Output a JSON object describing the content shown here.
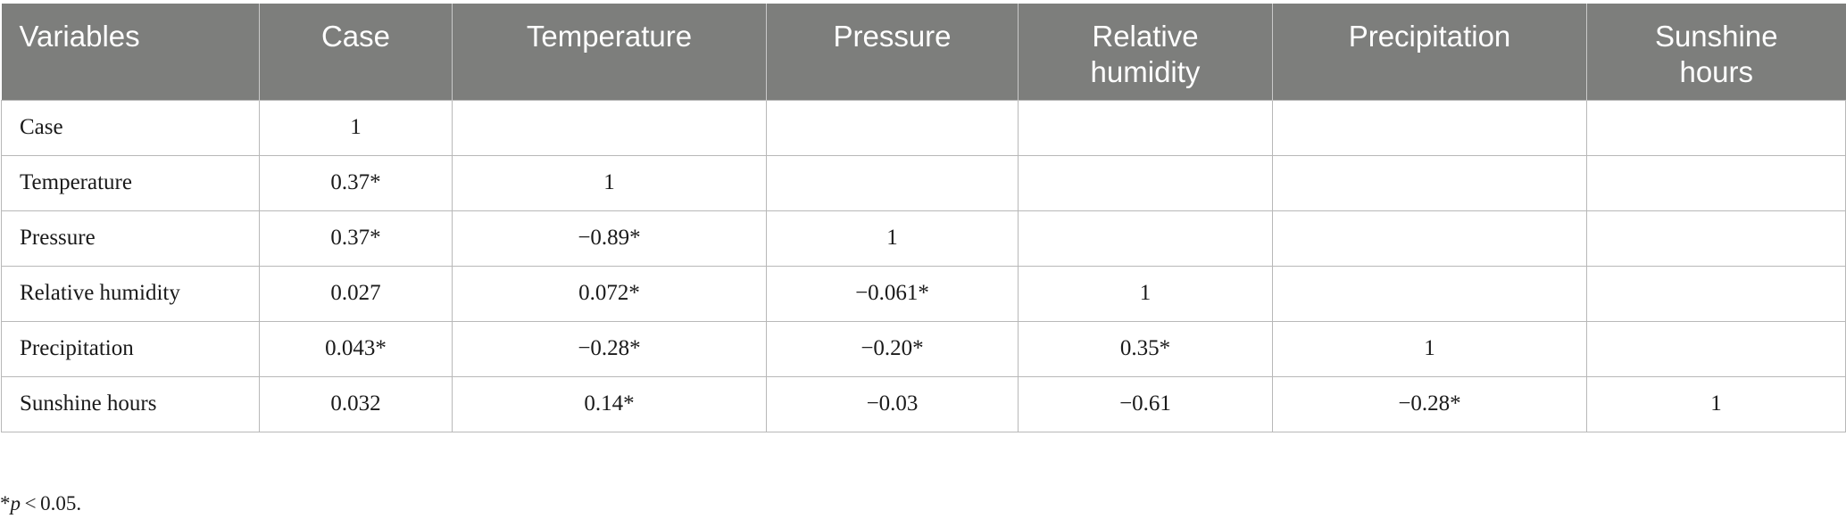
{
  "table": {
    "headers": [
      "Variables",
      "Case",
      "Temperature",
      "Pressure",
      "Relative humidity",
      "Precipitation",
      "Sunshine hours"
    ],
    "rows": [
      [
        "Case",
        "1",
        "",
        "",
        "",
        "",
        ""
      ],
      [
        "Temperature",
        "0.37*",
        "1",
        "",
        "",
        "",
        ""
      ],
      [
        "Pressure",
        "0.37*",
        "−0.89*",
        "1",
        "",
        "",
        ""
      ],
      [
        "Relative humidity",
        "0.027",
        "0.072*",
        "−0.061*",
        "1",
        "",
        ""
      ],
      [
        "Precipitation",
        "0.043*",
        "−0.28*",
        "−0.20*",
        "0.35*",
        "1",
        ""
      ],
      [
        "Sunshine hours",
        "0.032",
        "0.14*",
        "−0.03",
        "−0.61",
        "−0.28*",
        "1"
      ]
    ]
  },
  "footnote": {
    "prefix": "*",
    "italic": "p",
    "suffix": " < 0.05."
  },
  "colors": {
    "header_bg": "#7d7e7c",
    "header_text": "#ffffff",
    "grid_line": "#b8b8b8"
  }
}
